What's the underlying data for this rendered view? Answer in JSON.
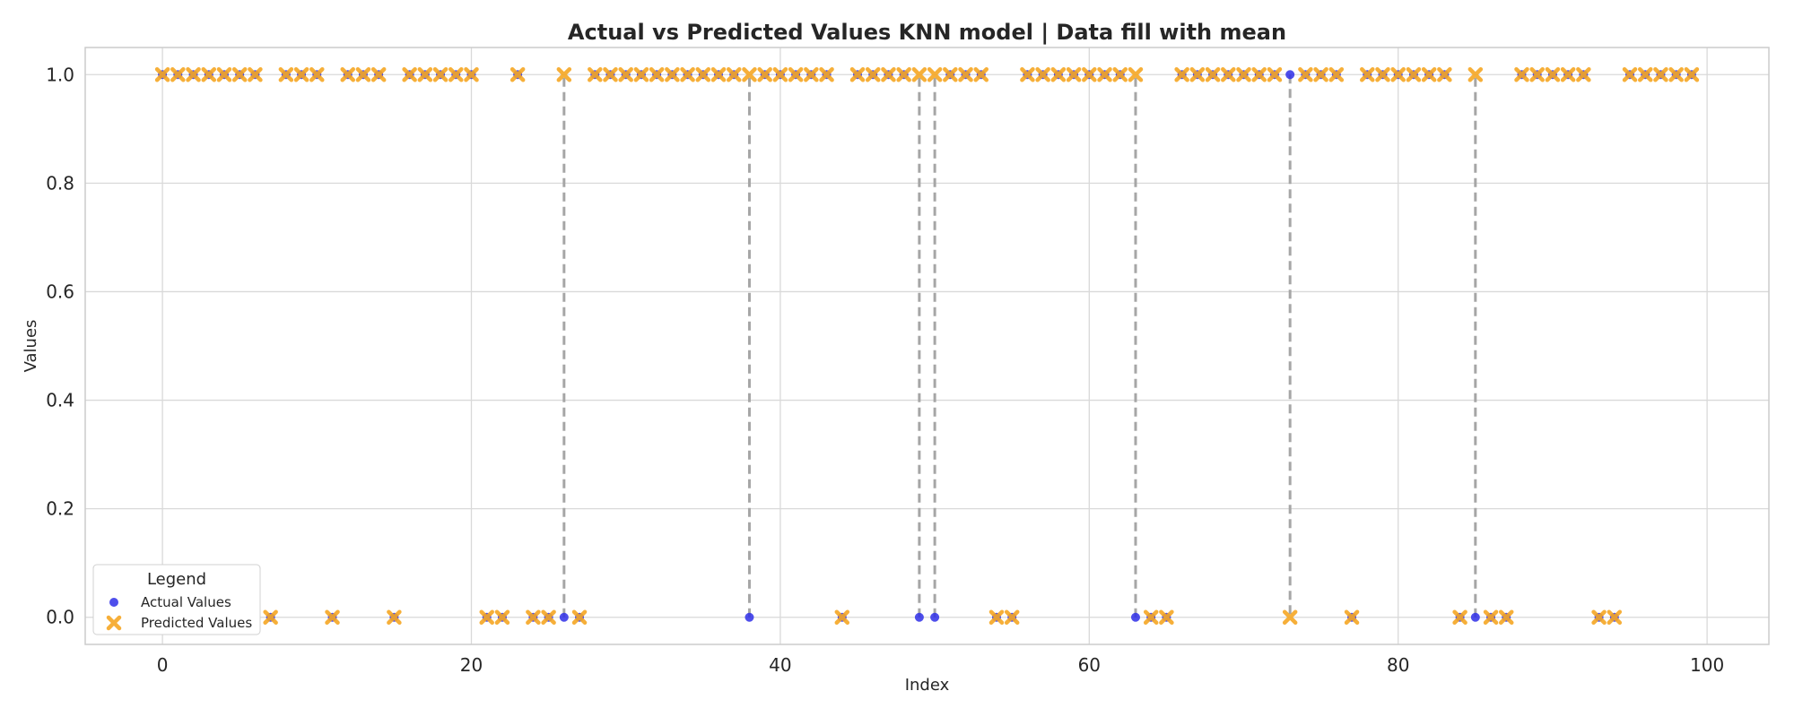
{
  "chart_data": {
    "type": "scatter",
    "title": "Actual vs Predicted Values KNN model | Data fill with mean",
    "xlabel": "Index",
    "ylabel": "Values",
    "xlim": [
      -5,
      104
    ],
    "ylim": [
      -0.05,
      1.05
    ],
    "xticks": [
      0,
      20,
      40,
      60,
      80,
      100
    ],
    "yticks": [
      0.0,
      0.2,
      0.4,
      0.6,
      0.8,
      1.0
    ],
    "xtick_labels": [
      "0",
      "20",
      "40",
      "60",
      "80",
      "100"
    ],
    "ytick_labels": [
      "0.0",
      "0.2",
      "0.4",
      "0.6",
      "0.8",
      "1.0"
    ],
    "grid": true,
    "legend_placement": "lower-left",
    "legend_title": "Legend",
    "x": [
      0,
      1,
      2,
      3,
      4,
      5,
      6,
      7,
      8,
      9,
      10,
      11,
      12,
      13,
      14,
      15,
      16,
      17,
      18,
      19,
      20,
      21,
      22,
      23,
      24,
      25,
      26,
      27,
      28,
      29,
      30,
      31,
      32,
      33,
      34,
      35,
      36,
      37,
      38,
      39,
      40,
      41,
      42,
      43,
      44,
      45,
      46,
      47,
      48,
      49,
      50,
      51,
      52,
      53,
      54,
      55,
      56,
      57,
      58,
      59,
      60,
      61,
      62,
      63,
      64,
      65,
      66,
      67,
      68,
      69,
      70,
      71,
      72,
      73,
      74,
      75,
      76,
      77,
      78,
      79,
      80,
      81,
      82,
      83,
      84,
      85,
      86,
      87,
      88,
      89,
      90,
      91,
      92,
      93,
      94,
      95,
      96,
      97,
      98,
      99
    ],
    "series": [
      {
        "name": "Actual Values",
        "color": "#2f2fe8",
        "marker": "circle",
        "values": [
          1,
          1,
          1,
          1,
          1,
          1,
          1,
          0,
          1,
          1,
          1,
          0,
          1,
          1,
          1,
          0,
          1,
          1,
          1,
          1,
          1,
          0,
          0,
          1,
          0,
          0,
          0,
          0,
          1,
          1,
          1,
          1,
          1,
          1,
          1,
          1,
          1,
          1,
          0,
          1,
          1,
          1,
          1,
          1,
          0,
          1,
          1,
          1,
          1,
          0,
          0,
          1,
          1,
          1,
          0,
          0,
          1,
          1,
          1,
          1,
          1,
          1,
          1,
          0,
          0,
          0,
          1,
          1,
          1,
          1,
          1,
          1,
          1,
          1,
          1,
          1,
          1,
          0,
          1,
          1,
          1,
          1,
          1,
          1,
          0,
          0,
          0,
          0,
          1,
          1,
          1,
          1,
          1,
          0,
          0,
          1,
          1,
          1,
          1,
          1
        ]
      },
      {
        "name": "Predicted Values",
        "color": "#f5a623",
        "marker": "x",
        "values": [
          1,
          1,
          1,
          1,
          1,
          1,
          1,
          0,
          1,
          1,
          1,
          0,
          1,
          1,
          1,
          0,
          1,
          1,
          1,
          1,
          1,
          0,
          0,
          1,
          0,
          0,
          1,
          0,
          1,
          1,
          1,
          1,
          1,
          1,
          1,
          1,
          1,
          1,
          1,
          1,
          1,
          1,
          1,
          1,
          0,
          1,
          1,
          1,
          1,
          1,
          1,
          1,
          1,
          1,
          0,
          0,
          1,
          1,
          1,
          1,
          1,
          1,
          1,
          1,
          0,
          0,
          1,
          1,
          1,
          1,
          1,
          1,
          1,
          0,
          1,
          1,
          1,
          0,
          1,
          1,
          1,
          1,
          1,
          1,
          0,
          1,
          0,
          0,
          1,
          1,
          1,
          1,
          1,
          0,
          0,
          1,
          1,
          1,
          1,
          1
        ]
      }
    ]
  }
}
